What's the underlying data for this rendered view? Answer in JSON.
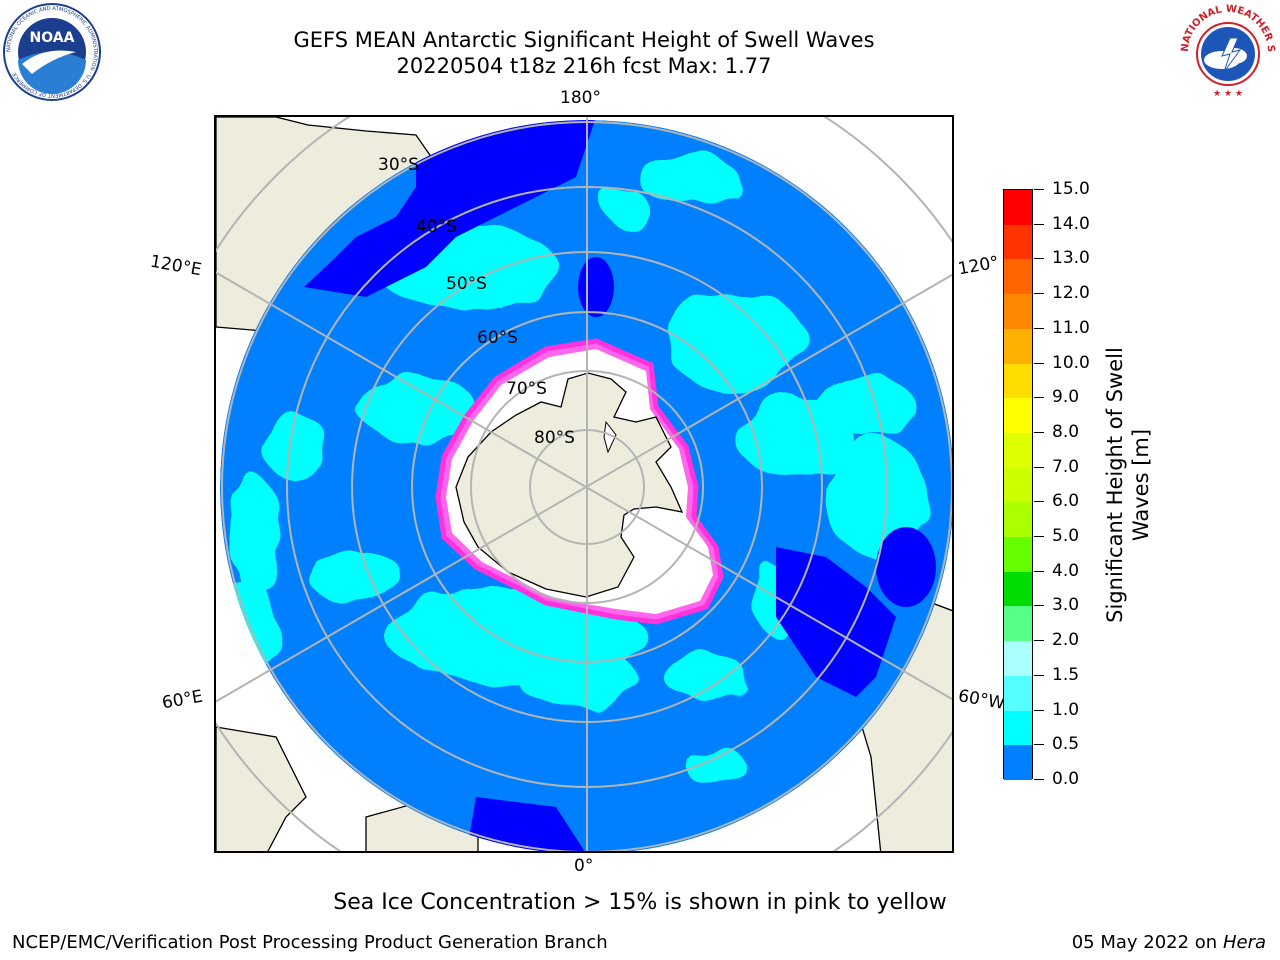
{
  "header": {
    "title_line1": "GEFS MEAN Antarctic Significant Height of Swell Waves",
    "title_line2": "20220504 t18z 216h fcst   Max: 1.77"
  },
  "logos": {
    "left": "NOAA",
    "left_ring_text": "NATIONAL OCEANIC AND ATMOSPHERIC ADMINISTRATION · U.S. DEPARTMENT OF COMMERCE",
    "right_ring_text": "NATIONAL WEATHER SERVICE"
  },
  "map": {
    "longitude_labels": {
      "top": "180°",
      "bottom": "0°",
      "left_upper": "120°E",
      "left_lower": "60°E",
      "right_upper": "120°",
      "right_lower": "60°W"
    },
    "latitude_labels": [
      "30°S",
      "40°S",
      "50°S",
      "60°S",
      "70°S",
      "80°S"
    ],
    "colors": {
      "land": "#eeecdc",
      "ice": "#ffffff",
      "ocean_0_0_5": "#0000ff",
      "ocean_0_5_1_0": "#0080ff",
      "ocean_1_0_1_5": "#00ffff",
      "ice_edge": "#ff33dd"
    }
  },
  "colorbar": {
    "label_line1": "Significant Height of Swell",
    "label_line2": "Waves [m]",
    "ticks": [
      "15.0",
      "14.0",
      "13.0",
      "12.0",
      "11.0",
      "10.0",
      "9.0",
      "8.0",
      "7.0",
      "6.0",
      "5.0",
      "4.0",
      "3.0",
      "2.0",
      "1.5",
      "1.0",
      "0.5",
      "0.0"
    ],
    "colors_top_to_bottom": [
      "#ff0000",
      "#ff3300",
      "#ff6600",
      "#ff8800",
      "#ffb000",
      "#ffdd00",
      "#ffff00",
      "#ddff00",
      "#ccff00",
      "#aaff00",
      "#66ff00",
      "#00dd00",
      "#55ff88",
      "#aaffff",
      "#55ffff",
      "#00ffff",
      "#0080ff",
      "#0000ff"
    ]
  },
  "note": "Sea Ice Concentration > 15% is shown in pink to yellow",
  "footer": {
    "left": "NCEP/EMC/Verification Post Processing Product Generation Branch",
    "right_date": "05 May 2022 on",
    "right_machine": "Hera"
  }
}
